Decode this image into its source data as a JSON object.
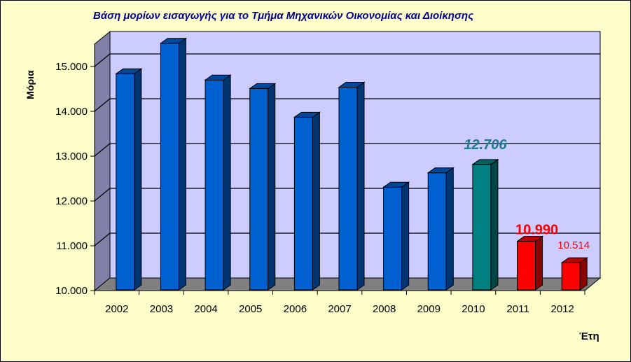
{
  "chart_data": {
    "type": "bar",
    "title": "Βάση μορίων εισαγωγής για το Τμήμα  Μηχανικών  Οικονομίας και Διοίκησης",
    "xlabel": "Έτη",
    "ylabel": "Μόρια",
    "categories": [
      "2002",
      "2003",
      "2004",
      "2005",
      "2006",
      "2007",
      "2008",
      "2009",
      "2010",
      "2011",
      "2012"
    ],
    "values": [
      14730,
      15410,
      14590,
      14400,
      13760,
      14430,
      12200,
      12520,
      12706,
      10990,
      10514
    ],
    "bar_colors": [
      "#0060d0",
      "#0060d0",
      "#0060d0",
      "#0060d0",
      "#0060d0",
      "#0060d0",
      "#0060d0",
      "#0060d0",
      "#008080",
      "#ff0000",
      "#ff0000"
    ],
    "ylim": [
      10000,
      15500
    ],
    "yticks": [
      "10.000",
      "11.000",
      "12.000",
      "13.000",
      "14.000",
      "15.000"
    ],
    "ytick_values": [
      10000,
      11000,
      12000,
      13000,
      14000,
      15000
    ],
    "grid": true,
    "annotations": [
      {
        "category": "2010",
        "text": "12.706",
        "color": "#1f7a8c",
        "style": "bold-italic"
      },
      {
        "category": "2011",
        "text": "10.990",
        "color": "#ff0000",
        "style": "bold"
      },
      {
        "category": "2012",
        "text": "10.514",
        "color": "#ff0000",
        "style": "normal"
      }
    ],
    "colors": {
      "background": "#ffffcc",
      "plot_area": "#ccccff",
      "floor": "#808080",
      "left_wall": "#8080a8"
    }
  }
}
